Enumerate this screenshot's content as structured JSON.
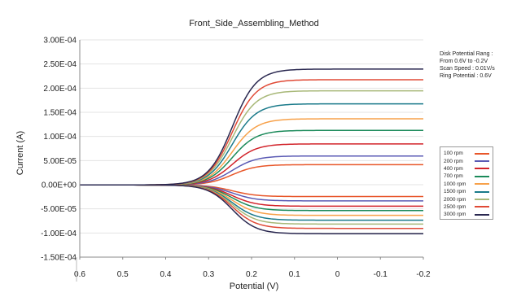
{
  "chart_data": {
    "type": "line",
    "title": "Front_Side_Assembling_Method",
    "xlabel": "Potential (V)",
    "ylabel": "Current (A)",
    "x_reversed": true,
    "xlim": [
      0.6,
      -0.2
    ],
    "ylim": [
      -0.00015,
      0.0003
    ],
    "x_ticks": [
      "0.6",
      "0.5",
      "0.4",
      "0.3",
      "0.2",
      "0.1",
      "0",
      "-0.1",
      "-0.2"
    ],
    "y_ticks": [
      "3.00E-04",
      "2.50E-04",
      "2.00E-04",
      "1.50E-04",
      "1.00E-04",
      "5.00E-05",
      "0.00E+00",
      "-5.00E-05",
      "-1.00E-04",
      "-1.50E-04"
    ],
    "grid": "horizontal",
    "legend_position": "right",
    "annotation": [
      "Disk Potential Rang :",
      "From 0.6V to -0.2V",
      "Scan Speed : 0.01V/s",
      "Ring Potential : 0.6V"
    ],
    "series": [
      {
        "name": "100 rpm",
        "color": "#e8572a",
        "disk_limit": 4.2e-05,
        "ring_limit": -2.4e-05
      },
      {
        "name": "200 rpm",
        "color": "#5a5ab4",
        "disk_limit": 6e-05,
        "ring_limit": -3.3e-05
      },
      {
        "name": "400 rpm",
        "color": "#d2232a",
        "disk_limit": 8.5e-05,
        "ring_limit": -4.4e-05
      },
      {
        "name": "700 rpm",
        "color": "#1b8a5a",
        "disk_limit": 0.000113,
        "ring_limit": -5.3e-05
      },
      {
        "name": "1000 rpm",
        "color": "#f7a14a",
        "disk_limit": 0.000137,
        "ring_limit": -6.3e-05
      },
      {
        "name": "1500 rpm",
        "color": "#1a7a8a",
        "disk_limit": 0.000168,
        "ring_limit": -7.3e-05
      },
      {
        "name": "2000 rpm",
        "color": "#a8b878",
        "disk_limit": 0.000195,
        "ring_limit": -8.1e-05
      },
      {
        "name": "2500 rpm",
        "color": "#e04a36",
        "disk_limit": 0.000218,
        "ring_limit": -9e-05
      },
      {
        "name": "3000 rpm",
        "color": "#2a2850",
        "disk_limit": 0.00024,
        "ring_limit": -0.000101
      }
    ],
    "curve_shape": {
      "half_wave_potential": 0.245,
      "slope_V": 0.028
    }
  }
}
